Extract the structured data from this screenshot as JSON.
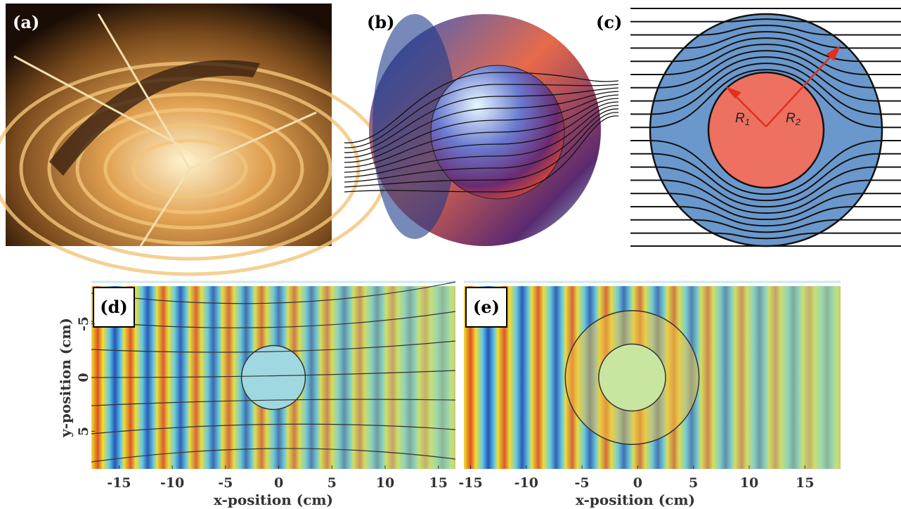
{
  "panels": [
    {
      "label": "(a)"
    },
    {
      "label": "(b)"
    },
    {
      "label": "(c)",
      "r1": "R",
      "r1_sub": "1",
      "r2": "R",
      "r2_sub": "2"
    }
  ],
  "plots": [
    {
      "label": "(d)",
      "x_label": "x-position (cm)",
      "y_label": "y-position (cm)",
      "xlim": [
        -17.6,
        16.6
      ],
      "ylim": [
        -8.5,
        8.5
      ],
      "xticks": [
        -15,
        -10,
        -5,
        0,
        5,
        10,
        15
      ],
      "yticks": [
        -5,
        0,
        5
      ]
    },
    {
      "label": "(e)",
      "x_label": "x-position (cm)",
      "xlim": [
        -15.6,
        18.2
      ],
      "ylim": [
        -8.5,
        8.5
      ],
      "xticks": [
        -15,
        -10,
        -5,
        0,
        5,
        10,
        15
      ]
    }
  ]
}
